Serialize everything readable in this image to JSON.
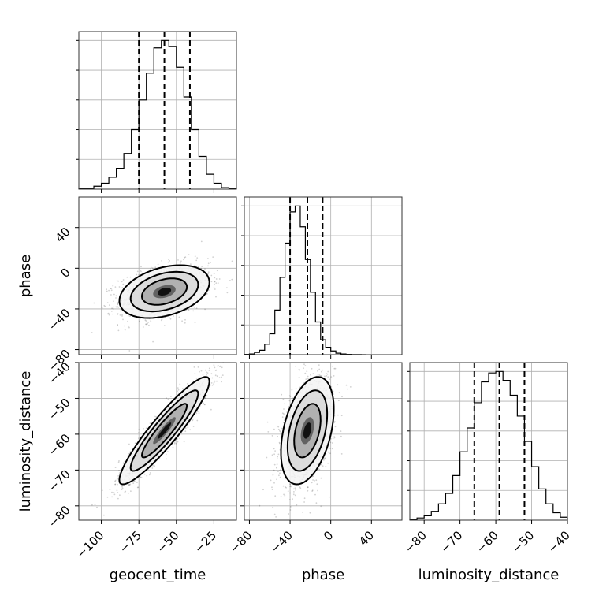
{
  "chart_data": {
    "type": "corner",
    "parameters": [
      "geocent_time",
      "phase",
      "luminosity_distance"
    ],
    "axis_labels": {
      "x": [
        "geocent_time",
        "phase",
        "luminosity_distance"
      ],
      "y": [
        "phase",
        "luminosity_distance"
      ]
    },
    "ranges": {
      "geocent_time": [
        -115,
        -10
      ],
      "phase": [
        -85,
        70
      ],
      "luminosity_distance": [
        -84,
        -40
      ]
    },
    "ticks": {
      "geocent_time": [
        -100,
        -75,
        -50,
        -25
      ],
      "phase": [
        -80,
        -40,
        0,
        40
      ],
      "luminosity_distance": [
        -80,
        -70,
        -60,
        -50,
        -40
      ]
    },
    "tick_labels": {
      "geocent_time": [
        "−100",
        "−75",
        "−50",
        "−25"
      ],
      "phase": [
        "−80",
        "−40",
        "0",
        "40"
      ],
      "luminosity_distance": [
        "−80",
        "−70",
        "−60",
        "−50",
        "−40"
      ]
    },
    "grid": true,
    "histograms": [
      {
        "parameter": "geocent_time",
        "bin_edges": [
          -115,
          -110,
          -105,
          -100,
          -95,
          -90,
          -85,
          -80,
          -75,
          -70,
          -65,
          -60,
          -55,
          -50,
          -45,
          -40,
          -35,
          -30,
          -25,
          -20,
          -15,
          -10
        ],
        "counts": [
          0.3,
          0.6,
          2,
          4,
          8,
          14,
          24,
          40,
          60,
          78,
          95,
          100,
          96,
          82,
          62,
          40,
          22,
          10,
          4,
          1,
          0.3
        ],
        "quantiles": [
          -75,
          -58,
          -41
        ]
      },
      {
        "parameter": "phase",
        "bin_edges": [
          -85,
          -80,
          -75,
          -70,
          -65,
          -60,
          -55,
          -50,
          -45,
          -40,
          -35,
          -30,
          -25,
          -20,
          -15,
          -10,
          -5,
          0,
          5,
          10,
          15,
          20,
          25,
          30,
          35
        ],
        "counts": [
          0.2,
          0.5,
          1.5,
          3,
          7,
          14,
          30,
          52,
          75,
          96,
          100,
          86,
          64,
          42,
          22,
          10,
          5,
          2.5,
          1,
          0.5,
          0.2,
          0.1,
          0.1,
          0
        ],
        "quantiles": [
          -40,
          -23,
          -8
        ]
      },
      {
        "parameter": "luminosity_distance",
        "bin_edges": [
          -84,
          -82,
          -80,
          -78,
          -76,
          -74,
          -72,
          -70,
          -68,
          -66,
          -64,
          -62,
          -60,
          -58,
          -56,
          -54,
          -52,
          -50,
          -48,
          -46,
          -44,
          -42,
          -40
        ],
        "counts": [
          0.5,
          1.5,
          3,
          6,
          11,
          18,
          30,
          46,
          62,
          79,
          93,
          99,
          100,
          94,
          84,
          70,
          53,
          36,
          21,
          11,
          5,
          2
        ],
        "quantiles": [
          -66,
          -59,
          -52
        ]
      }
    ],
    "joint": [
      {
        "x": "geocent_time",
        "y": "phase",
        "mean": [
          -58,
          -23
        ],
        "sd": [
          15,
          13
        ],
        "corr": 0.35,
        "contour_levels_sigma": [
          0.5,
          1.0,
          1.5,
          2.0
        ]
      },
      {
        "x": "geocent_time",
        "y": "luminosity_distance",
        "mean": [
          -58,
          -59
        ],
        "sd": [
          15,
          7.5
        ],
        "corr": 0.92,
        "contour_levels_sigma": [
          0.5,
          1.0,
          1.5,
          2.0
        ]
      },
      {
        "x": "phase",
        "y": "luminosity_distance",
        "mean": [
          -23,
          -59
        ],
        "sd": [
          13,
          7.5
        ],
        "corr": 0.4,
        "contour_levels_sigma": [
          0.5,
          1.0,
          1.5,
          2.0
        ]
      }
    ]
  }
}
